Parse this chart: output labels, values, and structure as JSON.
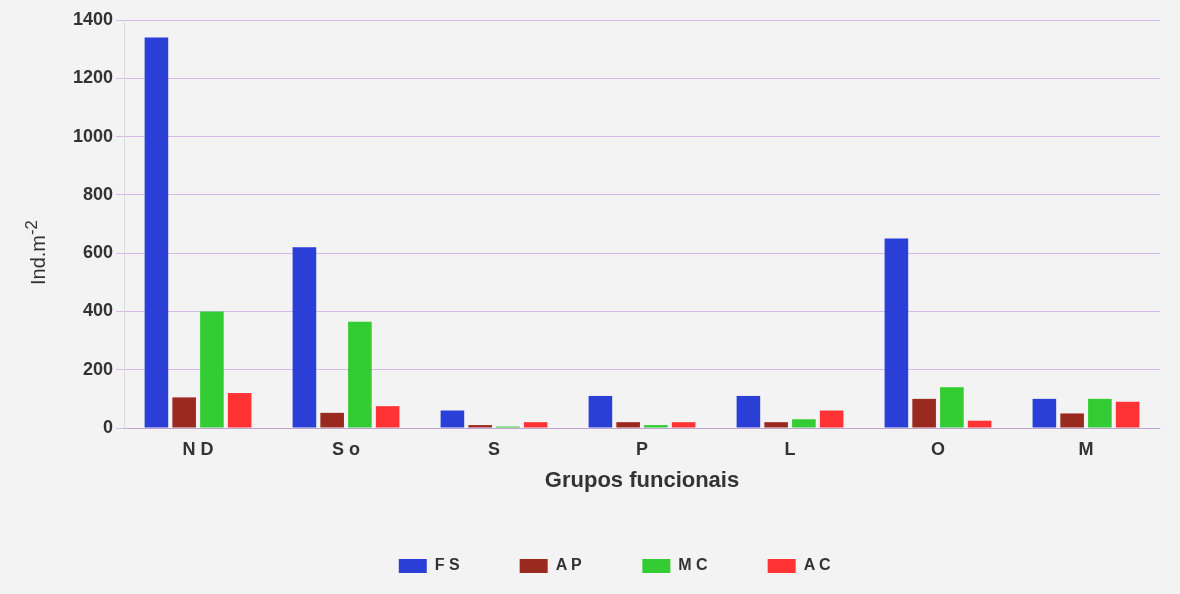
{
  "chart_data": {
    "type": "bar",
    "xlabel": "Grupos funcionais",
    "ylabel": "Ind.m$^{-2}$",
    "categories": [
      "N D",
      "S o",
      "S",
      "P",
      "L",
      "O",
      "M"
    ],
    "series": [
      {
        "name": "F S",
        "color": "#2b3fd6",
        "values": [
          1340,
          620,
          60,
          110,
          110,
          650,
          100
        ]
      },
      {
        "name": "A P",
        "color": "#9a2a20",
        "values": [
          105,
          52,
          10,
          20,
          20,
          100,
          50
        ]
      },
      {
        "name": "M C",
        "color": "#33cc33",
        "values": [
          400,
          365,
          5,
          10,
          30,
          140,
          100
        ]
      },
      {
        "name": "A C",
        "color": "#ff3333",
        "values": [
          120,
          75,
          20,
          20,
          60,
          25,
          90
        ]
      }
    ],
    "ylim": [
      0,
      1400
    ],
    "yticks": [
      0,
      200,
      400,
      600,
      800,
      1000,
      1200,
      1400
    ],
    "grid": "y",
    "legend": "bottom"
  }
}
